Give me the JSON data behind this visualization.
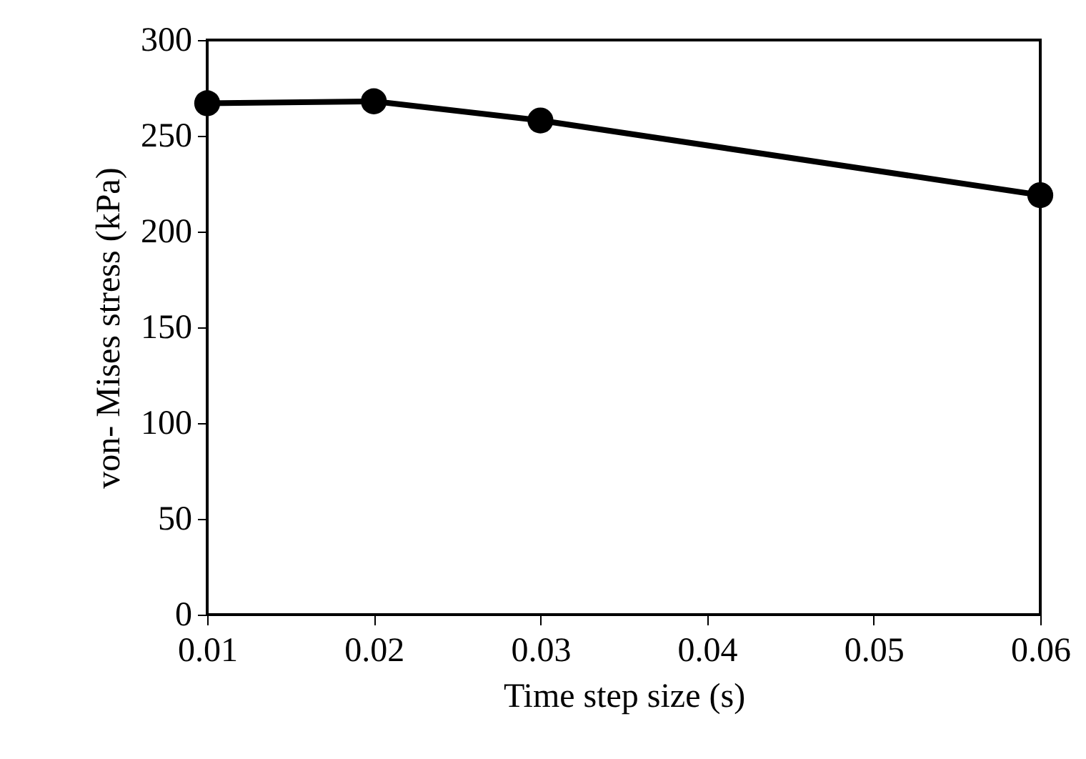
{
  "chart_data": {
    "type": "line",
    "xlabel": "Time step size (s)",
    "ylabel": "von- Mises stress (kPa)",
    "x": [
      0.01,
      0.02,
      0.03,
      0.06
    ],
    "series": [
      {
        "color": "#000000",
        "values": [
          267,
          268,
          258,
          219
        ]
      }
    ],
    "xlim": [
      0.01,
      0.06
    ],
    "xticks": [
      0.01,
      0.02,
      0.03,
      0.04,
      0.05,
      0.06
    ],
    "ylim": [
      0,
      300
    ],
    "yticks": [
      0,
      50,
      100,
      150,
      200,
      250,
      300
    ],
    "grid": false,
    "marker": "circle",
    "line_style": "solid"
  }
}
